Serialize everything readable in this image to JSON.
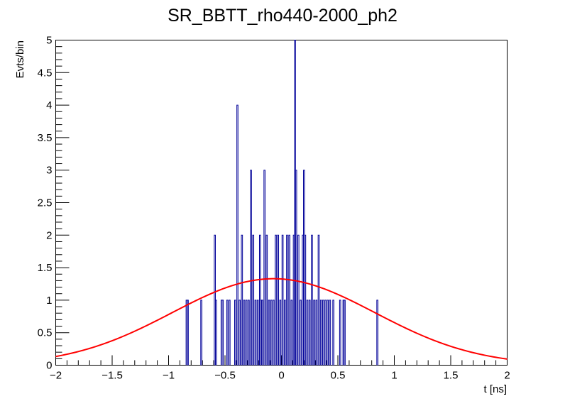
{
  "chart_data": {
    "type": "histogram",
    "title": "SR_BBTT_rho440-2000_ph2",
    "xlabel": "t [ns]",
    "ylabel": "Evts/bin",
    "xlim": [
      -2,
      2
    ],
    "ylim": [
      0,
      5
    ],
    "bin_width": 0.01,
    "x_ticks": [
      "−2",
      "−1.5",
      "−1",
      "−0.5",
      "0",
      "0.5",
      "1",
      "1.5",
      "2"
    ],
    "x_tick_values": [
      -2,
      -1.5,
      -1,
      -0.5,
      0,
      0.5,
      1,
      1.5,
      2
    ],
    "y_ticks": [
      "0",
      "0.5",
      "1",
      "1.5",
      "2",
      "2.5",
      "3",
      "3.5",
      "4",
      "4.5",
      "5"
    ],
    "y_tick_values": [
      0,
      0.5,
      1,
      1.5,
      2,
      2.5,
      3,
      3.5,
      4,
      4.5,
      5
    ],
    "bins": [
      {
        "x": -0.84,
        "y": 1
      },
      {
        "x": -0.83,
        "y": 1
      },
      {
        "x": -0.71,
        "y": 1
      },
      {
        "x": -0.59,
        "y": 2
      },
      {
        "x": -0.58,
        "y": 1
      },
      {
        "x": -0.53,
        "y": 1
      },
      {
        "x": -0.52,
        "y": 1
      },
      {
        "x": -0.48,
        "y": 1
      },
      {
        "x": -0.46,
        "y": 1
      },
      {
        "x": -0.41,
        "y": 1
      },
      {
        "x": -0.39,
        "y": 4
      },
      {
        "x": -0.37,
        "y": 1
      },
      {
        "x": -0.35,
        "y": 2
      },
      {
        "x": -0.33,
        "y": 1
      },
      {
        "x": -0.31,
        "y": 1
      },
      {
        "x": -0.29,
        "y": 1
      },
      {
        "x": -0.27,
        "y": 3
      },
      {
        "x": -0.25,
        "y": 2
      },
      {
        "x": -0.23,
        "y": 1
      },
      {
        "x": -0.21,
        "y": 1
      },
      {
        "x": -0.19,
        "y": 2
      },
      {
        "x": -0.18,
        "y": 1
      },
      {
        "x": -0.17,
        "y": 1
      },
      {
        "x": -0.15,
        "y": 3
      },
      {
        "x": -0.13,
        "y": 2
      },
      {
        "x": -0.11,
        "y": 1
      },
      {
        "x": -0.09,
        "y": 1
      },
      {
        "x": -0.07,
        "y": 1
      },
      {
        "x": -0.05,
        "y": 2
      },
      {
        "x": -0.03,
        "y": 2
      },
      {
        "x": -0.01,
        "y": 1
      },
      {
        "x": 0.01,
        "y": 2
      },
      {
        "x": 0.03,
        "y": 1
      },
      {
        "x": 0.05,
        "y": 2
      },
      {
        "x": 0.07,
        "y": 2
      },
      {
        "x": 0.09,
        "y": 1
      },
      {
        "x": 0.11,
        "y": 2
      },
      {
        "x": 0.12,
        "y": 5
      },
      {
        "x": 0.13,
        "y": 3
      },
      {
        "x": 0.15,
        "y": 2
      },
      {
        "x": 0.17,
        "y": 1
      },
      {
        "x": 0.19,
        "y": 2
      },
      {
        "x": 0.2,
        "y": 3
      },
      {
        "x": 0.21,
        "y": 2
      },
      {
        "x": 0.23,
        "y": 1
      },
      {
        "x": 0.25,
        "y": 1
      },
      {
        "x": 0.27,
        "y": 2
      },
      {
        "x": 0.29,
        "y": 1
      },
      {
        "x": 0.31,
        "y": 1
      },
      {
        "x": 0.33,
        "y": 2
      },
      {
        "x": 0.35,
        "y": 1
      },
      {
        "x": 0.37,
        "y": 1
      },
      {
        "x": 0.39,
        "y": 1
      },
      {
        "x": 0.41,
        "y": 1
      },
      {
        "x": 0.43,
        "y": 1
      },
      {
        "x": 0.46,
        "y": 1
      },
      {
        "x": 0.52,
        "y": 1
      },
      {
        "x": 0.55,
        "y": 1
      },
      {
        "x": 0.56,
        "y": 1
      },
      {
        "x": 0.85,
        "y": 1
      }
    ],
    "fit": {
      "type": "gaussian",
      "amplitude": 1.33,
      "mean": -0.07,
      "sigma": 0.9,
      "color": "#ff0000"
    },
    "hist_color": "#000099",
    "grid": false,
    "legend": "none"
  }
}
